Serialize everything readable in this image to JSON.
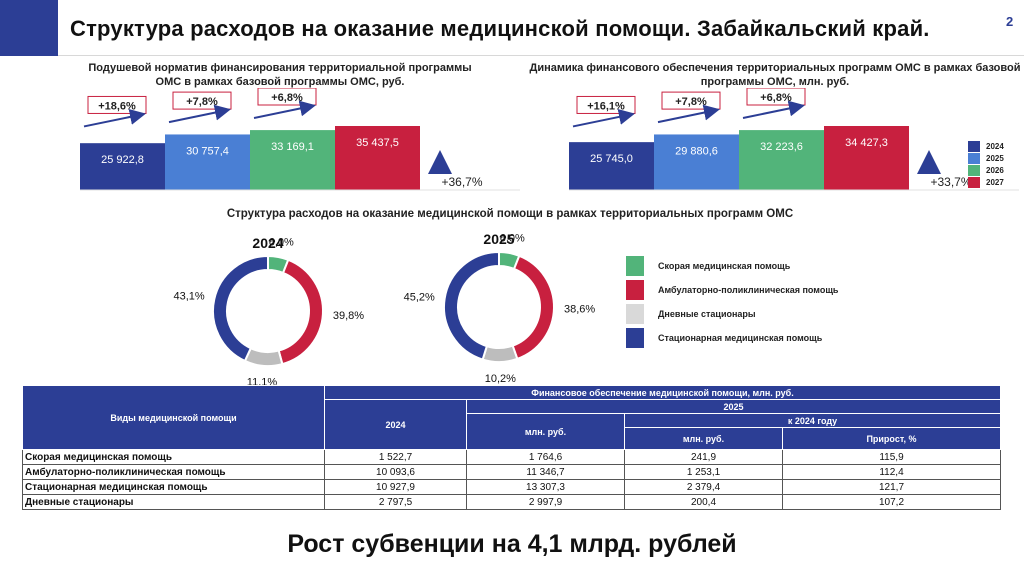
{
  "header": {
    "title": "Структура расходов на оказание медицинской помощи. Забайкальский край.",
    "page_number": "2"
  },
  "colors": {
    "dark_blue": "#2c3e95",
    "light_blue": "#4a7fd4",
    "green": "#52b47a",
    "red": "#c8203f",
    "gray": "#bdbdbd",
    "arrow": "#2c3e95",
    "label_border": "#c8203f"
  },
  "chart_data": [
    {
      "type": "bar",
      "title": "Подушевой норматив финансирования территориальной программы ОМС в рамках базовой программы ОМС, руб.",
      "categories": [
        "2024",
        "2025",
        "2026",
        "2027"
      ],
      "values": [
        25922.8,
        30757.4,
        33169.1,
        35437.5
      ],
      "value_labels": [
        "25 922,8",
        "30 757,4",
        "33 169,1",
        "35 437,5"
      ],
      "growth_labels": [
        "+18,6%",
        "+7,8%",
        "+6,8%"
      ],
      "total_growth": "+36,7%",
      "ylim": [
        0,
        40000
      ]
    },
    {
      "type": "bar",
      "title": "Динамика финансового обеспечения территориальных программ ОМС в рамках базовой программы ОМС, млн. руб.",
      "categories": [
        "2024",
        "2025",
        "2026",
        "2027"
      ],
      "values": [
        25745.0,
        29880.6,
        32223.6,
        34427.3
      ],
      "value_labels": [
        "25 745,0",
        "29 880,6",
        "32 223,6",
        "34 427,3"
      ],
      "growth_labels": [
        "+16,1%",
        "+7,8%",
        "+6,8%"
      ],
      "total_growth": "+33,7%",
      "ylim": [
        0,
        40000
      ],
      "legend": [
        "2024",
        "2025",
        "2026",
        "2027"
      ]
    },
    {
      "type": "pie",
      "title": "2024",
      "labels": [
        "Скорая медицинская помощь",
        "Амбулаторно-поликлиническая помощь",
        "Дневные стационары",
        "Стационарная медицинская помощь"
      ],
      "values": [
        6.0,
        39.8,
        11.1,
        43.1
      ],
      "value_labels": [
        "6,0%",
        "39,8%",
        "11,1%",
        "43,1%"
      ]
    },
    {
      "type": "pie",
      "title": "2025",
      "labels": [
        "Скорая медицинская помощь",
        "Амбулаторно-поликлиническая помощь",
        "Дневные стационары",
        "Стационарная медицинская помощь"
      ],
      "values": [
        6.0,
        38.6,
        10.2,
        45.2
      ],
      "value_labels": [
        "6,0%",
        "38,6%",
        "10,2%",
        "45,2%"
      ]
    }
  ],
  "pies_title": "Структура расходов на оказание медицинской помощи в рамках территориальных программ ОМС",
  "pie_legend": [
    {
      "label": "Скорая медицинская помощь",
      "color": "#52b47a"
    },
    {
      "label": "Амбулаторно-поликлиническая помощь",
      "color": "#c8203f"
    },
    {
      "label": "Дневные стационары",
      "color": "#d9d9d9"
    },
    {
      "label": "Стационарная медицинская помощь",
      "color": "#2c3e95"
    }
  ],
  "table": {
    "h_types": "Виды медицинской помощи",
    "h_fin": "Финансовое обеспечение медицинской помощи, млн. руб.",
    "h_2024": "2024",
    "h_2025": "2025",
    "h_mln": "млн. руб.",
    "h_vs2024": "к 2024 году",
    "h_mln2": "млн. руб.",
    "h_growth": "Прирост, %",
    "rows": [
      {
        "name": "Скорая медицинская помощь",
        "v2024": "1 522,7",
        "v2025": "1 764,6",
        "diff": "241,9",
        "pct": "115,9"
      },
      {
        "name": "Амбулаторно-поликлиническая помощь",
        "v2024": "10 093,6",
        "v2025": "11 346,7",
        "diff": "1 253,1",
        "pct": "112,4"
      },
      {
        "name": "Стационарная медицинская помощь",
        "v2024": "10 927,9",
        "v2025": "13 307,3",
        "diff": "2 379,4",
        "pct": "121,7"
      },
      {
        "name": "Дневные стационары",
        "v2024": "2 797,5",
        "v2025": "2 997,9",
        "diff": "200,4",
        "pct": "107,2"
      }
    ]
  },
  "footer": {
    "text": "Рост субвенции на 4,1 млрд. рублей"
  }
}
